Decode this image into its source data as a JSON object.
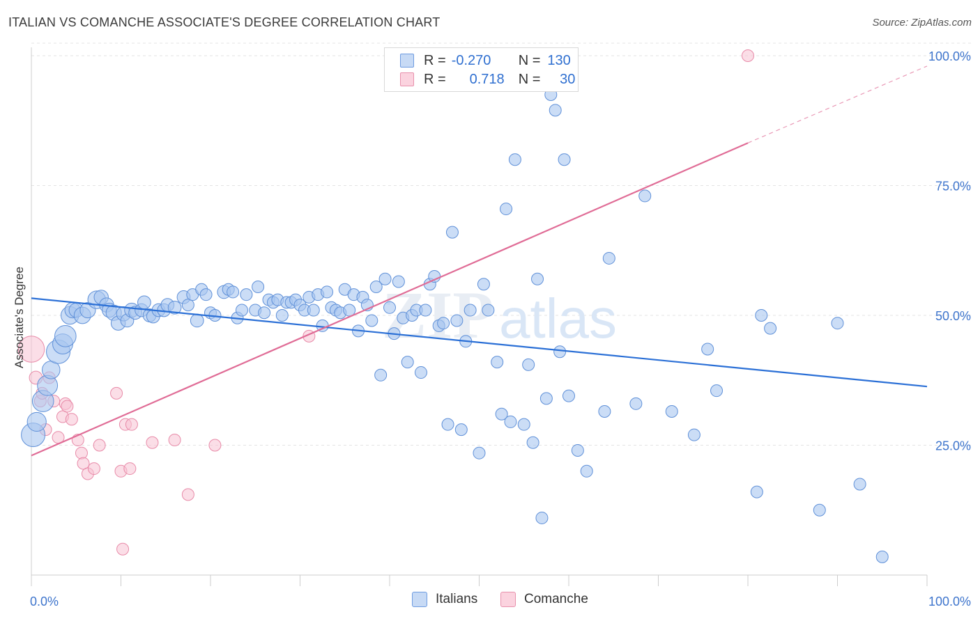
{
  "header": {
    "title": "ITALIAN VS COMANCHE ASSOCIATE'S DEGREE CORRELATION CHART",
    "source": "Source: ZipAtlas.com"
  },
  "legend_top": {
    "rows": [
      {
        "r_label": "R =",
        "r_value": "-0.270",
        "n_label": "N =",
        "n_value": "130"
      },
      {
        "r_label": "R =",
        "r_value": "0.718",
        "n_label": "N =",
        "n_value": "30"
      }
    ]
  },
  "legend_bottom": {
    "items": [
      {
        "label": "Italians"
      },
      {
        "label": "Comanche"
      }
    ]
  },
  "colors": {
    "italians_fill": "#a9c6f0",
    "italians_stroke": "#5f90d8",
    "italians_line": "#2a6fd6",
    "comanche_fill": "#f8c3d3",
    "comanche_stroke": "#e88aa8",
    "comanche_line": "#e06c96",
    "tick_label": "#3d74cc",
    "grid": "#e3e3e3"
  },
  "watermark": {
    "a": "ZIP",
    "b": "atlas"
  },
  "chart_data": {
    "type": "scatter",
    "title": "ITALIAN VS COMANCHE ASSOCIATE'S DEGREE CORRELATION CHART",
    "xlabel": "",
    "ylabel": "Associate's Degree",
    "xlim": [
      0,
      100
    ],
    "ylim": [
      0,
      100
    ],
    "x_tick_labels": [
      "0.0%",
      "100.0%"
    ],
    "y_ticks": [
      25,
      50,
      75,
      100
    ],
    "y_tick_labels": [
      "25.0%",
      "50.0%",
      "75.0%",
      "100.0%"
    ],
    "grid": true,
    "legend_position": "top-center",
    "series": [
      {
        "name": "Italians",
        "r": -0.27,
        "n": 130,
        "trend": {
          "x": [
            0,
            100
          ],
          "y": [
            53.3,
            36.3
          ]
        },
        "points": [
          [
            0.2,
            27,
            2.0
          ],
          [
            0.6,
            29.5,
            1.6
          ],
          [
            1.3,
            33.5,
            1.8
          ],
          [
            1.8,
            36.5,
            1.7
          ],
          [
            2.2,
            39.5,
            1.5
          ],
          [
            3.0,
            43,
            2.0
          ],
          [
            3.5,
            44.5,
            1.7
          ],
          [
            3.8,
            46,
            1.8
          ],
          [
            4.3,
            50,
            1.5
          ],
          [
            4.6,
            51,
            1.3
          ],
          [
            5.0,
            51,
            1.2
          ],
          [
            5.7,
            50,
            1.4
          ],
          [
            6.3,
            51,
            1.3
          ],
          [
            7.3,
            53,
            1.5
          ],
          [
            7.8,
            53.5,
            1.2
          ],
          [
            8.4,
            52,
            1.2
          ],
          [
            8.7,
            51,
            1.2
          ],
          [
            9.2,
            50.5,
            1.3
          ],
          [
            9.7,
            48.5,
            1.2
          ],
          [
            10.3,
            50.3,
            1.2
          ],
          [
            10.7,
            49,
            1.1
          ],
          [
            11.2,
            51,
            1.2
          ],
          [
            11.6,
            50.5,
            1.1
          ],
          [
            12.3,
            51,
            1.1
          ],
          [
            12.6,
            52.5,
            1.1
          ],
          [
            13.2,
            50,
            1.1
          ],
          [
            13.6,
            49.8,
            1.1
          ],
          [
            14.2,
            51,
            1.1
          ],
          [
            14.8,
            51,
            1.1
          ],
          [
            15.2,
            52,
            1.1
          ],
          [
            16.0,
            51.5,
            1.1
          ],
          [
            17.0,
            53.5,
            1.1
          ],
          [
            17.5,
            52,
            1.0
          ],
          [
            18.0,
            54,
            1.0
          ],
          [
            18.5,
            49,
            1.1
          ],
          [
            19.0,
            55,
            1.0
          ],
          [
            19.5,
            54,
            1.0
          ],
          [
            20.0,
            50.5,
            1.0
          ],
          [
            20.5,
            50,
            1.0
          ],
          [
            21.5,
            54.5,
            1.1
          ],
          [
            22.0,
            55,
            1.0
          ],
          [
            22.5,
            54.5,
            1.0
          ],
          [
            23.0,
            49.5,
            1.0
          ],
          [
            23.5,
            51,
            1.0
          ],
          [
            24.0,
            54,
            1.0
          ],
          [
            25.0,
            51,
            1.0
          ],
          [
            25.3,
            55.5,
            1.0
          ],
          [
            26.0,
            50.5,
            1.0
          ],
          [
            26.5,
            53,
            1.0
          ],
          [
            27.0,
            52.5,
            1.0
          ],
          [
            27.5,
            53,
            1.0
          ],
          [
            28.0,
            50,
            1.0
          ],
          [
            28.5,
            52.5,
            1.0
          ],
          [
            29.0,
            52.5,
            1.0
          ],
          [
            29.5,
            53,
            1.0
          ],
          [
            30.0,
            52,
            1.0
          ],
          [
            30.5,
            51,
            1.0
          ],
          [
            31.0,
            53.5,
            1.0
          ],
          [
            31.5,
            51,
            1.0
          ],
          [
            32.0,
            54,
            1.0
          ],
          [
            32.5,
            48,
            1.0
          ],
          [
            33.0,
            54.5,
            1.0
          ],
          [
            33.5,
            51.5,
            1.0
          ],
          [
            34.0,
            51,
            1.0
          ],
          [
            34.5,
            50.5,
            1.0
          ],
          [
            35.0,
            55,
            1.0
          ],
          [
            35.5,
            51,
            1.0
          ],
          [
            36.0,
            54,
            1.0
          ],
          [
            36.5,
            47,
            1.0
          ],
          [
            37.0,
            53.5,
            1.0
          ],
          [
            37.5,
            52,
            1.0
          ],
          [
            38.0,
            49,
            1.0
          ],
          [
            38.5,
            55.5,
            1.0
          ],
          [
            39.0,
            38.5,
            1.0
          ],
          [
            39.5,
            57,
            1.0
          ],
          [
            40.0,
            51.5,
            1.0
          ],
          [
            40.5,
            46.5,
            1.0
          ],
          [
            41.0,
            56.5,
            1.0
          ],
          [
            41.5,
            49.5,
            1.0
          ],
          [
            42.0,
            41,
            1.0
          ],
          [
            42.5,
            50,
            1.0
          ],
          [
            43.0,
            51,
            1.0
          ],
          [
            43.5,
            39,
            1.0
          ],
          [
            44.0,
            51,
            1.0
          ],
          [
            44.5,
            56,
            1.0
          ],
          [
            45.0,
            57.5,
            1.0
          ],
          [
            45.5,
            48,
            1.0
          ],
          [
            46.0,
            48.5,
            1.0
          ],
          [
            46.5,
            29,
            1.0
          ],
          [
            47.0,
            66,
            1.0
          ],
          [
            47.5,
            49,
            1.0
          ],
          [
            48.0,
            28,
            1.0
          ],
          [
            48.5,
            45,
            1.0
          ],
          [
            49.0,
            51,
            1.0
          ],
          [
            50.0,
            23.5,
            1.0
          ],
          [
            50.5,
            56,
            1.0
          ],
          [
            51.0,
            51,
            1.0
          ],
          [
            52.0,
            41,
            1.0
          ],
          [
            52.5,
            31,
            1.0
          ],
          [
            53.0,
            70.5,
            1.0
          ],
          [
            53.5,
            29.5,
            1.0
          ],
          [
            54.0,
            80,
            1.0
          ],
          [
            55.0,
            29,
            1.0
          ],
          [
            55.5,
            40.5,
            1.0
          ],
          [
            56.0,
            25.5,
            1.0
          ],
          [
            56.5,
            57,
            1.0
          ],
          [
            57.0,
            11,
            1.0
          ],
          [
            57.5,
            34,
            1.0
          ],
          [
            58.0,
            92.5,
            1.0
          ],
          [
            58.5,
            89.5,
            1.0
          ],
          [
            59.0,
            43,
            1.0
          ],
          [
            59.5,
            80,
            1.0
          ],
          [
            60.0,
            34.5,
            1.0
          ],
          [
            61.0,
            24,
            1.0
          ],
          [
            62.0,
            20,
            1.0
          ],
          [
            64.0,
            31.5,
            1.0
          ],
          [
            64.5,
            61,
            1.0
          ],
          [
            67.5,
            33,
            1.0
          ],
          [
            68.5,
            73,
            1.0
          ],
          [
            71.5,
            31.5,
            1.0
          ],
          [
            74.0,
            27,
            1.0
          ],
          [
            75.5,
            43.5,
            1.0
          ],
          [
            76.5,
            35.5,
            1.0
          ],
          [
            81.0,
            16,
            1.0
          ],
          [
            81.5,
            50,
            1.0
          ],
          [
            82.5,
            47.5,
            1.0
          ],
          [
            88.0,
            12.5,
            1.0
          ],
          [
            90.0,
            48.5,
            1.0
          ],
          [
            92.5,
            17.5,
            1.0
          ],
          [
            95.0,
            3.5,
            1.0
          ]
        ]
      },
      {
        "name": "Comanche",
        "r": 0.718,
        "n": 30,
        "trend": {
          "x": [
            0,
            80
          ],
          "y": [
            23.0,
            83.2
          ]
        },
        "trend_extension": {
          "x": [
            80,
            100
          ],
          "y": [
            83.2,
            98.0
          ]
        },
        "points": [
          [
            0.0,
            43.5,
            2.2
          ],
          [
            0.5,
            38,
            1.1
          ],
          [
            1.0,
            33.5,
            1.0
          ],
          [
            1.2,
            35,
            1.0
          ],
          [
            1.6,
            28,
            1.0
          ],
          [
            2.0,
            38,
            1.0
          ],
          [
            2.5,
            33.5,
            1.0
          ],
          [
            3.0,
            26.5,
            1.0
          ],
          [
            3.5,
            30.5,
            1.0
          ],
          [
            3.8,
            33,
            1.0
          ],
          [
            4.0,
            32.5,
            1.0
          ],
          [
            4.5,
            30,
            1.0
          ],
          [
            5.2,
            26,
            1.0
          ],
          [
            5.6,
            23.5,
            1.0
          ],
          [
            5.8,
            21.5,
            1.0
          ],
          [
            6.3,
            19.5,
            1.0
          ],
          [
            7.0,
            20.5,
            1.0
          ],
          [
            7.6,
            25,
            1.0
          ],
          [
            9.5,
            35,
            1.0
          ],
          [
            10.0,
            20,
            1.0
          ],
          [
            10.5,
            29,
            1.0
          ],
          [
            11.0,
            20.5,
            1.0
          ],
          [
            11.2,
            29,
            1.0
          ],
          [
            10.2,
            5,
            1.0
          ],
          [
            13.5,
            25.5,
            1.0
          ],
          [
            16.0,
            26,
            1.0
          ],
          [
            17.5,
            15.5,
            1.0
          ],
          [
            20.5,
            25,
            1.0
          ],
          [
            31.0,
            46,
            1.0
          ],
          [
            80.0,
            100,
            1.0
          ]
        ]
      }
    ]
  }
}
